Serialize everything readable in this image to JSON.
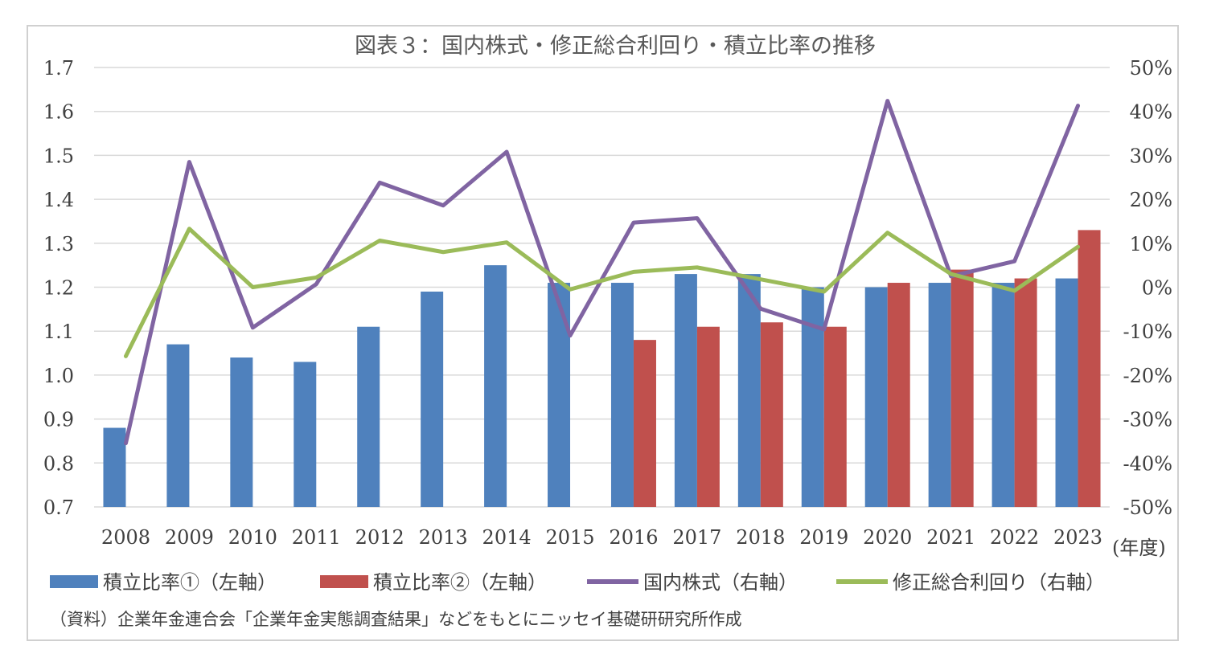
{
  "chart_data": {
    "type": "bar",
    "title": "図表３：国内株式・修正総合利回り・積立比率の推移",
    "xunit": "(年度)",
    "categories": [
      "2008",
      "2009",
      "2010",
      "2011",
      "2012",
      "2013",
      "2014",
      "2015",
      "2016",
      "2017",
      "2018",
      "2019",
      "2020",
      "2021",
      "2022",
      "2023"
    ],
    "y_left": {
      "min": 0.7,
      "max": 1.7,
      "ticks": [
        "0.7",
        "0.8",
        "0.9",
        "1.0",
        "1.1",
        "1.2",
        "1.3",
        "1.4",
        "1.5",
        "1.6",
        "1.7"
      ]
    },
    "y_right": {
      "min": -50,
      "max": 50,
      "ticks": [
        "-50%",
        "-40%",
        "-30%",
        "-20%",
        "-10%",
        "0%",
        "10%",
        "20%",
        "30%",
        "40%",
        "50%"
      ]
    },
    "series": [
      {
        "name": "積立比率①（左軸）",
        "type": "bar",
        "axis": "left",
        "color": "#4f81bd",
        "values": [
          0.88,
          1.07,
          1.04,
          1.03,
          1.11,
          1.19,
          1.25,
          1.21,
          1.21,
          1.23,
          1.23,
          1.2,
          1.2,
          1.21,
          1.21,
          1.22
        ]
      },
      {
        "name": "積立比率②（左軸）",
        "type": "bar",
        "axis": "left",
        "color": "#c0504d",
        "values": [
          null,
          null,
          null,
          null,
          null,
          null,
          null,
          null,
          1.08,
          1.11,
          1.12,
          1.11,
          1.21,
          1.24,
          1.22,
          1.33
        ]
      },
      {
        "name": "国内株式（右軸）",
        "type": "line",
        "axis": "right",
        "color": "#8064a2",
        "values": [
          -35.5,
          28.5,
          -9.2,
          0.7,
          23.8,
          18.6,
          30.8,
          -11.0,
          14.7,
          15.7,
          -4.9,
          -9.6,
          42.4,
          2.5,
          5.9,
          41.3
        ]
      },
      {
        "name": "修正総合利回り（右軸）",
        "type": "line",
        "axis": "right",
        "color": "#9bbb59",
        "values": [
          -15.7,
          13.3,
          0.0,
          2.2,
          10.6,
          8.0,
          10.2,
          -0.5,
          3.5,
          4.5,
          1.8,
          -1.0,
          12.4,
          3.0,
          -0.8,
          9.2
        ]
      }
    ],
    "grid": true,
    "legend_position": "bottom"
  },
  "source_note": "（資料）企業年金連合会「企業年金実態調査結果」などをもとにニッセイ基礎研研究所作成"
}
